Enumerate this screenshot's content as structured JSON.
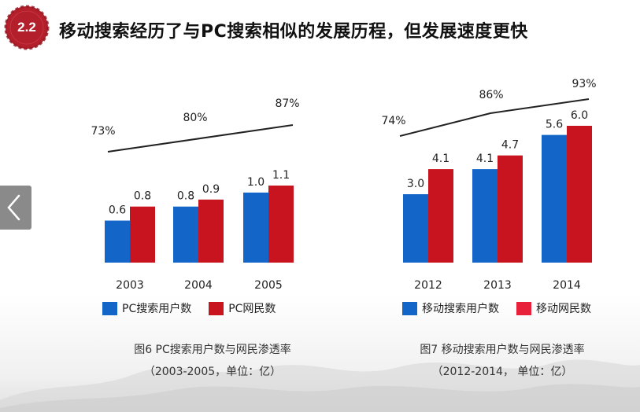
{
  "header": {
    "section_number": "2.2",
    "title": "移动搜索经历了与PC搜索相似的发展历程，但发展速度更快"
  },
  "colors": {
    "badge_red": "#b3202b",
    "blue": "#1366c8",
    "red": "#c8141e",
    "red_bright": "#e8203a",
    "line": "#222222",
    "prev_button": "#8a8a8a"
  },
  "nav": {
    "prev_icon": "chevron-left-icon"
  },
  "chart_data": [
    {
      "type": "bar",
      "categories": [
        "2003",
        "2004",
        "2005"
      ],
      "series": [
        {
          "name": "PC搜索用户数",
          "values": [
            0.6,
            0.8,
            1.0
          ],
          "labels": [
            "0.6",
            "0.8",
            "1.0"
          ],
          "color": "#1366c8"
        },
        {
          "name": "PC网民数",
          "values": [
            0.8,
            0.9,
            1.1
          ],
          "labels": [
            "0.8",
            "0.9",
            "1.1"
          ],
          "color": "#c8141e"
        }
      ],
      "penetration": {
        "values": [
          73,
          80,
          87
        ],
        "labels": [
          "73%",
          "80%",
          "87%"
        ]
      },
      "ylim": [
        0,
        1.1
      ],
      "title": "图6 PC搜索用户数与网民渗透率",
      "subtitle": "（2003-2005，单位：亿）",
      "grid": false,
      "legend": "bottom"
    },
    {
      "type": "bar",
      "categories": [
        "2012",
        "2013",
        "2014"
      ],
      "series": [
        {
          "name": "移动搜索用户数",
          "values": [
            3.0,
            4.1,
            5.6
          ],
          "labels": [
            "3.0",
            "4.1",
            "5.6"
          ],
          "color": "#1366c8"
        },
        {
          "name": "移动网民数",
          "values": [
            4.1,
            4.7,
            6.0
          ],
          "labels": [
            "4.1",
            "4.7",
            "6.0"
          ],
          "color": "#c8141e",
          "legend_color": "#e8203a"
        }
      ],
      "penetration": {
        "values": [
          74,
          86,
          93
        ],
        "labels": [
          "74%",
          "86%",
          "93%"
        ]
      },
      "ylim": [
        0,
        6.0
      ],
      "title": "图7 移动搜索用户数与网民渗透率",
      "subtitle": "（2012-2014， 单位：亿）",
      "grid": false,
      "legend": "bottom"
    }
  ]
}
